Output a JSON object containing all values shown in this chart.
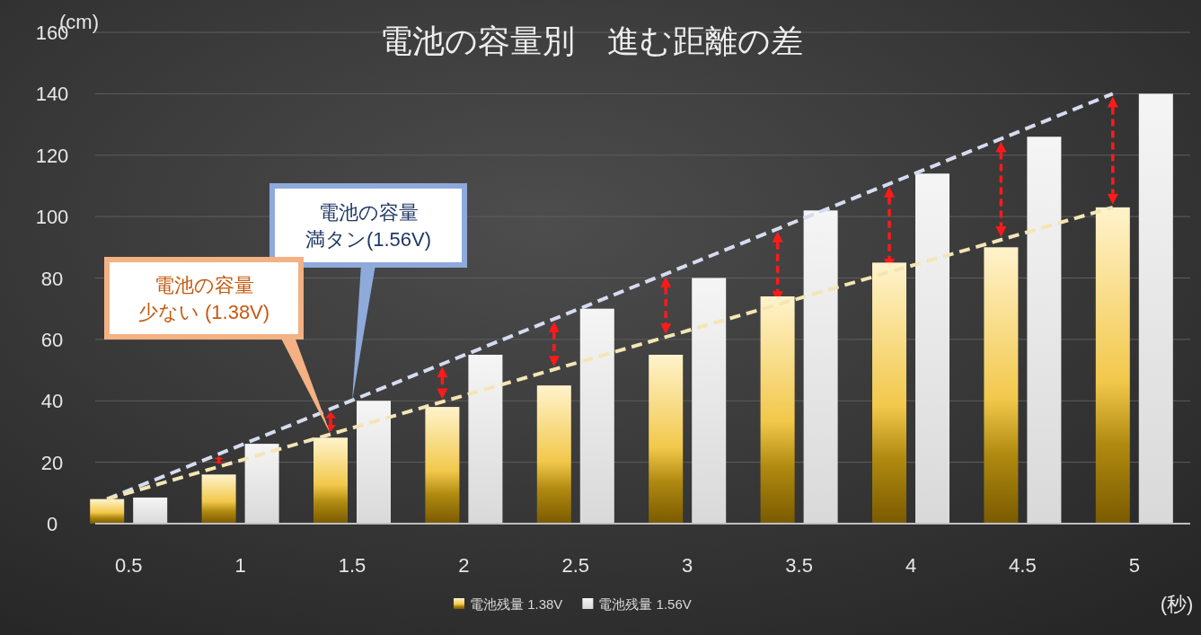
{
  "chart_data": {
    "type": "bar",
    "title": "電池の容量別　進む距離の差",
    "xlabel": "(秒)",
    "ylabel": "(cm)",
    "categories": [
      "0.5",
      "1",
      "1.5",
      "2",
      "2.5",
      "3",
      "3.5",
      "4",
      "4.5",
      "5"
    ],
    "series": [
      {
        "name": "電池残量 1.38V",
        "color": "#f2c84b",
        "values": [
          8,
          16,
          28,
          38,
          45,
          55,
          74,
          85,
          90,
          103
        ]
      },
      {
        "name": "電池残量 1.56V",
        "color": "#d9d9d9",
        "values": [
          8.5,
          26,
          40,
          55,
          70,
          80,
          102,
          114,
          126,
          140
        ]
      },
      {
        "type": "line",
        "x": [
          "0.5",
          "5"
        ],
        "color": "#d6dcef",
        "values": [
          8,
          140
        ],
        "line_style": "dashed"
      },
      {
        "type": "line",
        "x": [
          "0.5",
          "5"
        ],
        "color": "#f3e6b5",
        "values": [
          8,
          103
        ],
        "line_style": "dashed"
      }
    ],
    "annotations": [
      {
        "text": "電池の容量満タン(1.56V)",
        "x": "1.5",
        "y": 40
      },
      "電池の容量少ない (1.38V)"
    ],
    "ylim": [
      0,
      160
    ],
    "yticks": [
      0,
      20,
      40,
      60,
      80,
      100,
      120,
      140,
      160
    ],
    "grid": "y",
    "legend": "bottom"
  }
}
